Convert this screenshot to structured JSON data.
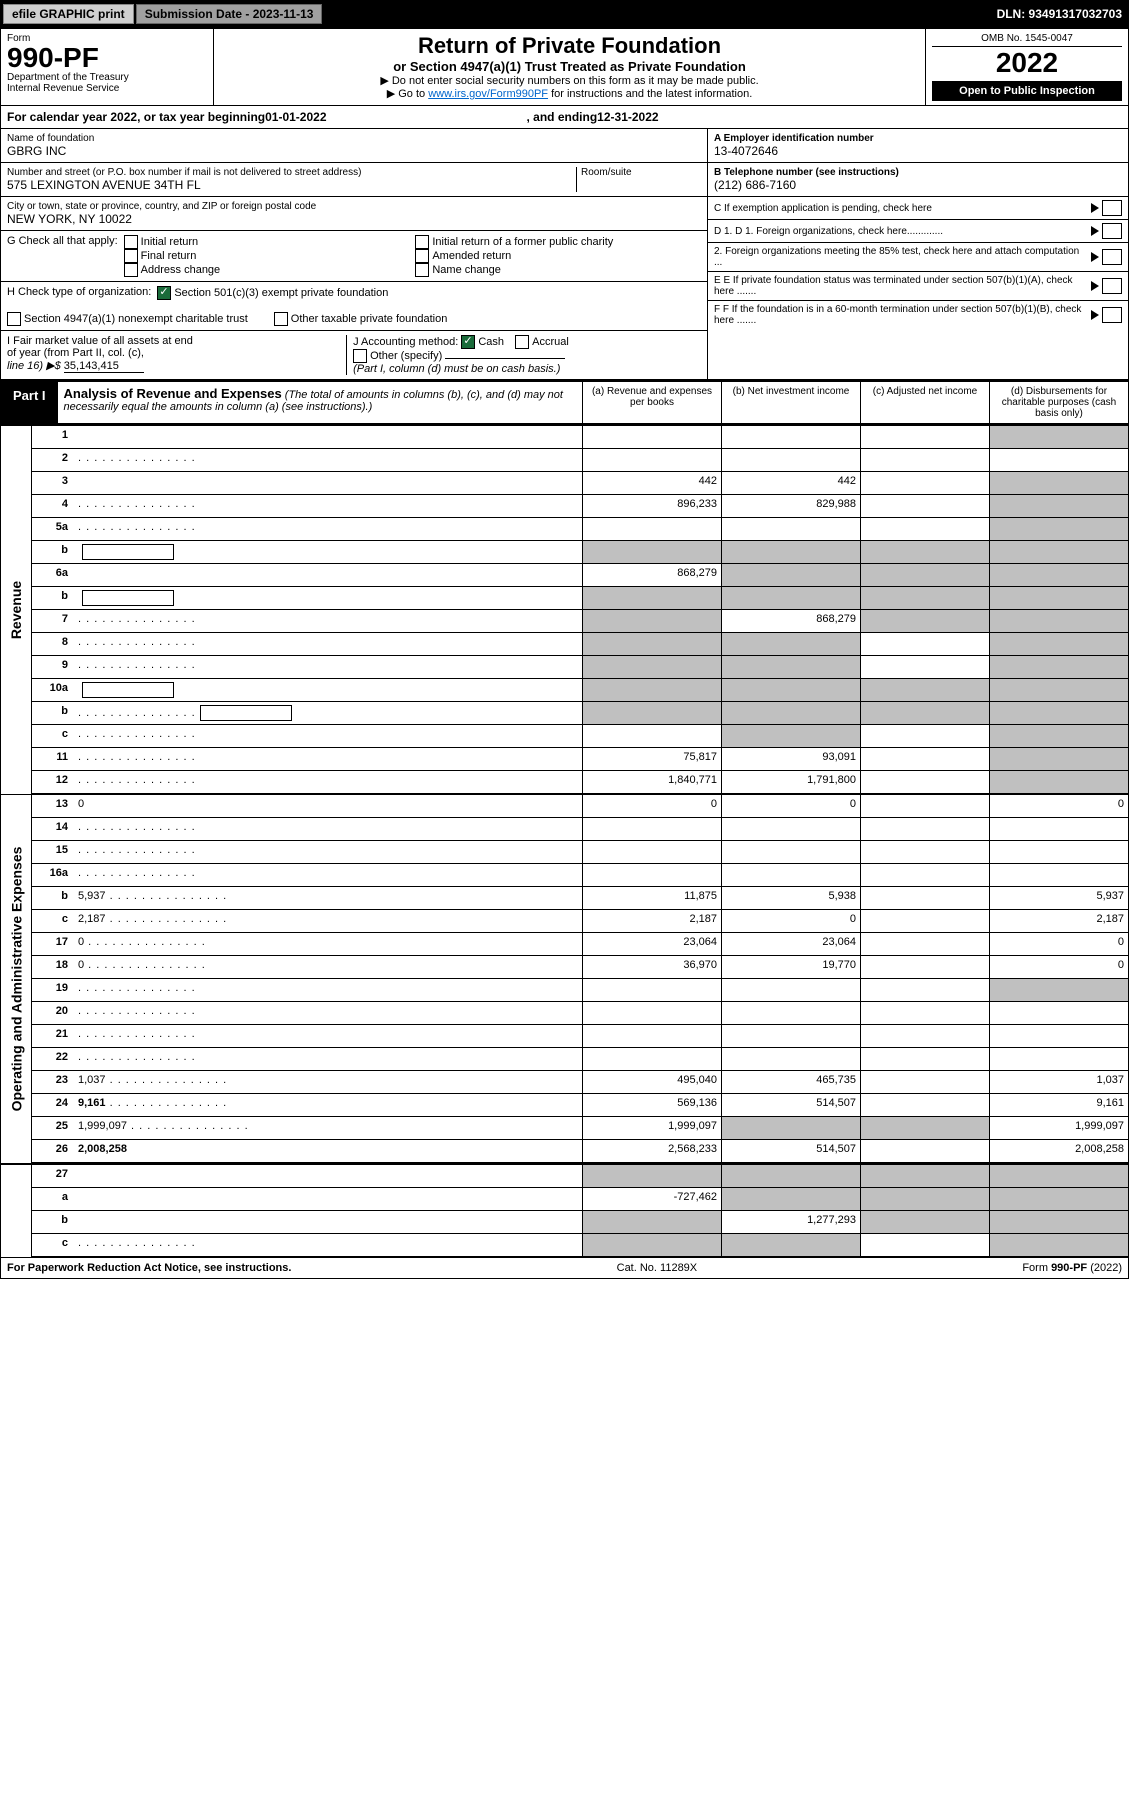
{
  "top": {
    "efile": "efile GRAPHIC print",
    "sub_label": "Submission Date - 2023-11-13",
    "dln": "DLN: 93491317032703"
  },
  "header": {
    "form_label": "Form",
    "form_num": "990-PF",
    "dept1": "Department of the Treasury",
    "dept2": "Internal Revenue Service",
    "title": "Return of Private Foundation",
    "sub": "or Section 4947(a)(1) Trust Treated as Private Foundation",
    "note1": "▶ Do not enter social security numbers on this form as it may be made public.",
    "note2_pre": "▶ Go to ",
    "note2_link": "www.irs.gov/Form990PF",
    "note2_post": " for instructions and the latest information.",
    "omb": "OMB No. 1545-0047",
    "year": "2022",
    "open": "Open to Public Inspection"
  },
  "cal": {
    "pre": "For calendar year 2022, or tax year beginning ",
    "begin": "01-01-2022",
    "mid": ", and ending ",
    "end": "12-31-2022"
  },
  "info": {
    "name_label": "Name of foundation",
    "name": "GBRG INC",
    "addr_label": "Number and street (or P.O. box number if mail is not delivered to street address)",
    "addr": "575 LEXINGTON AVENUE 34TH FL",
    "room_label": "Room/suite",
    "city_label": "City or town, state or province, country, and ZIP or foreign postal code",
    "city": "NEW YORK, NY  10022",
    "a_label": "A Employer identification number",
    "a_val": "13-4072646",
    "b_label": "B Telephone number (see instructions)",
    "b_val": "(212) 686-7160",
    "c_label": "C If exemption application is pending, check here",
    "d1": "D 1. Foreign organizations, check here.............",
    "d2": "2. Foreign organizations meeting the 85% test, check here and attach computation ...",
    "e": "E  If private foundation status was terminated under section 507(b)(1)(A), check here .......",
    "f": "F  If the foundation is in a 60-month termination under section 507(b)(1)(B), check here .......",
    "g_label": "G Check all that apply:",
    "g_initial": "Initial return",
    "g_initial_former": "Initial return of a former public charity",
    "g_final": "Final return",
    "g_amended": "Amended return",
    "g_addr": "Address change",
    "g_name": "Name change",
    "h_label": "H Check type of organization:",
    "h_501": "Section 501(c)(3) exempt private foundation",
    "h_4947": "Section 4947(a)(1) nonexempt charitable trust",
    "h_other": "Other taxable private foundation",
    "i_label1": "I Fair market value of all assets at end",
    "i_label2": "of year (from Part II, col. (c),",
    "i_label3": "line 16) ▶$",
    "i_val": "35,143,415",
    "j_label": "J Accounting method:",
    "j_cash": "Cash",
    "j_accrual": "Accrual",
    "j_other": "Other (specify)",
    "j_note": "(Part I, column (d) must be on cash basis.)"
  },
  "part1": {
    "label": "Part I",
    "title": "Analysis of Revenue and Expenses",
    "note": " (The total of amounts in columns (b), (c), and (d) may not necessarily equal the amounts in column (a) (see instructions).)",
    "col_a": "(a)   Revenue and expenses per books",
    "col_b": "(b)   Net investment income",
    "col_c": "(c)  Adjusted net income",
    "col_d": "(d)  Disbursements for charitable purposes (cash basis only)"
  },
  "side": {
    "revenue": "Revenue",
    "opex": "Operating and Administrative Expenses"
  },
  "rows": [
    {
      "n": "1",
      "d": "",
      "a": "",
      "b": "",
      "c": "",
      "grey_c": false,
      "grey_d": true
    },
    {
      "n": "2",
      "d": "",
      "dotted": true,
      "a": "",
      "b": "",
      "c": "",
      "grey_all": true
    },
    {
      "n": "3",
      "d": "",
      "a": "442",
      "b": "442",
      "c": "",
      "grey_d": true
    },
    {
      "n": "4",
      "d": "",
      "dotted": true,
      "a": "896,233",
      "b": "829,988",
      "c": "",
      "grey_d": true
    },
    {
      "n": "5a",
      "d": "",
      "dotted": true,
      "a": "",
      "b": "",
      "c": "",
      "grey_d": true
    },
    {
      "n": "b",
      "d": "",
      "sub": true,
      "a": "",
      "b": "",
      "c": "",
      "grey_abcd": true
    },
    {
      "n": "6a",
      "d": "",
      "a": "868,279",
      "b": "",
      "c": "",
      "grey_b": true,
      "grey_c": true,
      "grey_d": true
    },
    {
      "n": "b",
      "d": "",
      "sub": true,
      "a": "",
      "b": "",
      "c": "",
      "grey_abcd": true
    },
    {
      "n": "7",
      "d": "",
      "dotted": true,
      "a": "",
      "b": "868,279",
      "c": "",
      "grey_a": true,
      "grey_c": true,
      "grey_d": true
    },
    {
      "n": "8",
      "d": "",
      "dotted": true,
      "a": "",
      "b": "",
      "c": "",
      "grey_a": true,
      "grey_b": true,
      "grey_d": true
    },
    {
      "n": "9",
      "d": "",
      "dotted": true,
      "a": "",
      "b": "",
      "c": "",
      "grey_a": true,
      "grey_b": true,
      "grey_d": true
    },
    {
      "n": "10a",
      "d": "",
      "sub": true,
      "a": "",
      "b": "",
      "c": "",
      "grey_abcd": true
    },
    {
      "n": "b",
      "d": "",
      "dotted": true,
      "sub": true,
      "a": "",
      "b": "",
      "c": "",
      "grey_abcd": true
    },
    {
      "n": "c",
      "d": "",
      "dotted": true,
      "a": "",
      "b": "",
      "c": "",
      "grey_b": true,
      "grey_d": true
    },
    {
      "n": "11",
      "d": "",
      "dotted": true,
      "a": "75,817",
      "b": "93,091",
      "c": "",
      "grey_d": true
    },
    {
      "n": "12",
      "d": "",
      "bold": true,
      "dotted": true,
      "a": "1,840,771",
      "b": "1,791,800",
      "c": "",
      "grey_d": true
    }
  ],
  "opex_rows": [
    {
      "n": "13",
      "d": "0",
      "a": "0",
      "b": "0",
      "c": ""
    },
    {
      "n": "14",
      "d": "",
      "dotted": true,
      "a": "",
      "b": "",
      "c": ""
    },
    {
      "n": "15",
      "d": "",
      "dotted": true,
      "a": "",
      "b": "",
      "c": ""
    },
    {
      "n": "16a",
      "d": "",
      "dotted": true,
      "a": "",
      "b": "",
      "c": ""
    },
    {
      "n": "b",
      "d": "5,937",
      "dotted": true,
      "a": "11,875",
      "b": "5,938",
      "c": ""
    },
    {
      "n": "c",
      "d": "2,187",
      "dotted": true,
      "a": "2,187",
      "b": "0",
      "c": ""
    },
    {
      "n": "17",
      "d": "0",
      "dotted": true,
      "a": "23,064",
      "b": "23,064",
      "c": ""
    },
    {
      "n": "18",
      "d": "0",
      "dotted": true,
      "a": "36,970",
      "b": "19,770",
      "c": ""
    },
    {
      "n": "19",
      "d": "",
      "dotted": true,
      "a": "",
      "b": "",
      "c": "",
      "grey_d": true
    },
    {
      "n": "20",
      "d": "",
      "dotted": true,
      "a": "",
      "b": "",
      "c": ""
    },
    {
      "n": "21",
      "d": "",
      "dotted": true,
      "a": "",
      "b": "",
      "c": ""
    },
    {
      "n": "22",
      "d": "",
      "dotted": true,
      "a": "",
      "b": "",
      "c": ""
    },
    {
      "n": "23",
      "d": "1,037",
      "dotted": true,
      "a": "495,040",
      "b": "465,735",
      "c": ""
    },
    {
      "n": "24",
      "d": "9,161",
      "bold": true,
      "dotted": true,
      "twoLine": true,
      "a": "569,136",
      "b": "514,507",
      "c": ""
    },
    {
      "n": "25",
      "d": "1,999,097",
      "dotted": true,
      "a": "1,999,097",
      "b": "",
      "c": "",
      "grey_b": true,
      "grey_c": true
    },
    {
      "n": "26",
      "d": "2,008,258",
      "bold": true,
      "a": "2,568,233",
      "b": "514,507",
      "c": ""
    }
  ],
  "bottom_rows": [
    {
      "n": "27",
      "d": "",
      "a": "",
      "b": "",
      "c": "",
      "grey_abcd": true
    },
    {
      "n": "a",
      "d": "",
      "bold": true,
      "a": "-727,462",
      "b": "",
      "c": "",
      "grey_b": true,
      "grey_c": true,
      "grey_d": true
    },
    {
      "n": "b",
      "d": "",
      "bold": true,
      "a": "",
      "b": "1,277,293",
      "c": "",
      "grey_a": true,
      "grey_c": true,
      "grey_d": true
    },
    {
      "n": "c",
      "d": "",
      "bold": true,
      "dotted": true,
      "a": "",
      "b": "",
      "c": "",
      "grey_a": true,
      "grey_b": true,
      "grey_d": true
    }
  ],
  "footer": {
    "left": "For Paperwork Reduction Act Notice, see instructions.",
    "mid": "Cat. No. 11289X",
    "right": "Form 990-PF (2022)"
  }
}
